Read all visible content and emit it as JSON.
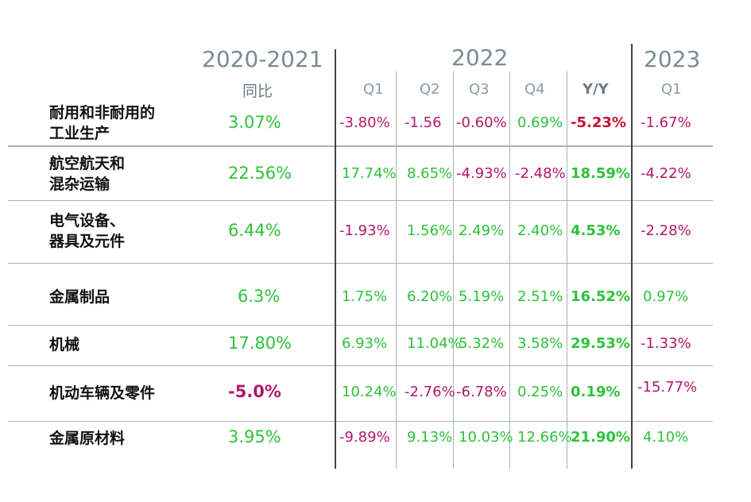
{
  "colors": {
    "positive": "#2ec23a",
    "negative": "#b3186b",
    "yy_negative": "#c8102e",
    "header": "#7a8a93",
    "grid": "#a9b3b9"
  },
  "header": {
    "period_base": "2020-2021",
    "period_base_sub": "同比",
    "year_2022": "2022",
    "year_2023": "2023",
    "cols_2022": [
      "Q1",
      "Q2",
      "Q3",
      "Q4",
      "Y/Y"
    ],
    "cols_2023": [
      "Q1"
    ]
  },
  "rows": [
    {
      "label": "耐用和非耐用的\n工业生产",
      "base": "3.07%",
      "q1": "-3.80%",
      "q2": "-1.56",
      "q3": "-0.60%",
      "q4": "0.69%",
      "yy": "-5.23%",
      "q1_2023": "-1.67%"
    },
    {
      "label": "航空航天和\n混杂运输",
      "base": "22.56%",
      "q1": "17.74%",
      "q2": "8.65%",
      "q3": "-4.93%",
      "q4": "-2.48%",
      "yy": "18.59%",
      "q1_2023": "-4.22%"
    },
    {
      "label": "电气设备、\n器具及元件",
      "base": "6.44%",
      "q1": "-1.93%",
      "q2": "1.56%",
      "q3": "2.49%",
      "q4": "2.40%",
      "yy": "4.53%",
      "q1_2023": "-2.28%"
    },
    {
      "label": "金属制品",
      "base": "6.3%",
      "q1": "1.75%",
      "q2": "6.20%",
      "q3": "5.19%",
      "q4": "2.51%",
      "yy": "16.52%",
      "q1_2023": "0.97%"
    },
    {
      "label": "机械",
      "base": "17.80%",
      "q1": "6.93%",
      "q2": "11.04%",
      "q3": "5.32%",
      "q4": "3.58%",
      "yy": "29.53%",
      "q1_2023": "-1.33%"
    },
    {
      "label": "机动车辆及零件",
      "base": "-5.0%",
      "q1": "10.24%",
      "q2": "-2.76%",
      "q3": "-6.78%",
      "q4": "0.25%",
      "yy": "0.19%",
      "q1_2023": "-15.77%"
    },
    {
      "label": "金属原材料",
      "base": "3.95%",
      "q1": "-9.89%",
      "q2": "9.13%",
      "q3": "10.03%",
      "q4": "12.66%",
      "yy": "21.90%",
      "q1_2023": "4.10%"
    }
  ],
  "chart_data": {
    "type": "table",
    "columns": [
      "2020-2021 同比",
      "2022 Q1",
      "2022 Q2",
      "2022 Q3",
      "2022 Q4",
      "2022 Y/Y",
      "2023 Q1"
    ],
    "row_labels": [
      "耐用和非耐用的工业生产",
      "航空航天和混杂运输",
      "电气设备、器具及元件",
      "金属制品",
      "机械",
      "机动车辆及零件",
      "金属原材料"
    ],
    "values": [
      [
        3.07,
        -3.8,
        -1.56,
        -0.6,
        0.69,
        -5.23,
        -1.67
      ],
      [
        22.56,
        17.74,
        8.65,
        -4.93,
        -2.48,
        18.59,
        -4.22
      ],
      [
        6.44,
        -1.93,
        1.56,
        2.49,
        2.4,
        4.53,
        -2.28
      ],
      [
        6.3,
        1.75,
        6.2,
        5.19,
        2.51,
        16.52,
        0.97
      ],
      [
        17.8,
        6.93,
        11.04,
        5.32,
        3.58,
        29.53,
        -1.33
      ],
      [
        -5.0,
        10.24,
        -2.76,
        -6.78,
        0.25,
        0.19,
        -15.77
      ],
      [
        3.95,
        -9.89,
        9.13,
        10.03,
        12.66,
        21.9,
        4.1
      ]
    ]
  }
}
